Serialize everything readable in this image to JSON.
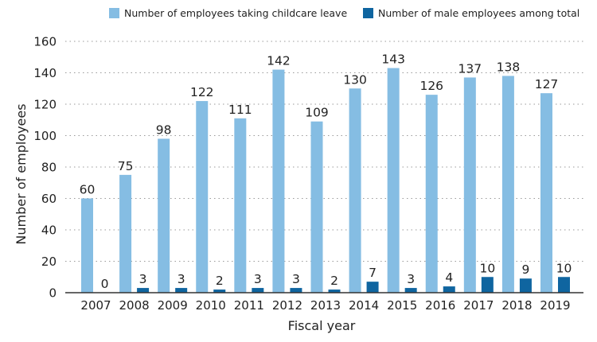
{
  "chart_data": {
    "type": "bar",
    "xlabel": "Fiscal year",
    "ylabel": "Number of employees",
    "ylim": [
      0,
      160
    ],
    "yticks": [
      0,
      20,
      40,
      60,
      80,
      100,
      120,
      140,
      160
    ],
    "grid": true,
    "legend_position": "top-right",
    "categories": [
      "2007",
      "2008",
      "2009",
      "2010",
      "2011",
      "2012",
      "2013",
      "2014",
      "2015",
      "2016",
      "2017",
      "2018",
      "2019"
    ],
    "series": [
      {
        "name": "Number of employees taking childcare leave",
        "color": "#85bde3",
        "values": [
          60,
          75,
          98,
          122,
          111,
          142,
          109,
          130,
          143,
          126,
          137,
          138,
          127
        ]
      },
      {
        "name": "Number of male employees among total",
        "color": "#0f65a0",
        "values": [
          0,
          3,
          3,
          2,
          3,
          3,
          2,
          7,
          3,
          4,
          10,
          9,
          10
        ]
      }
    ]
  }
}
